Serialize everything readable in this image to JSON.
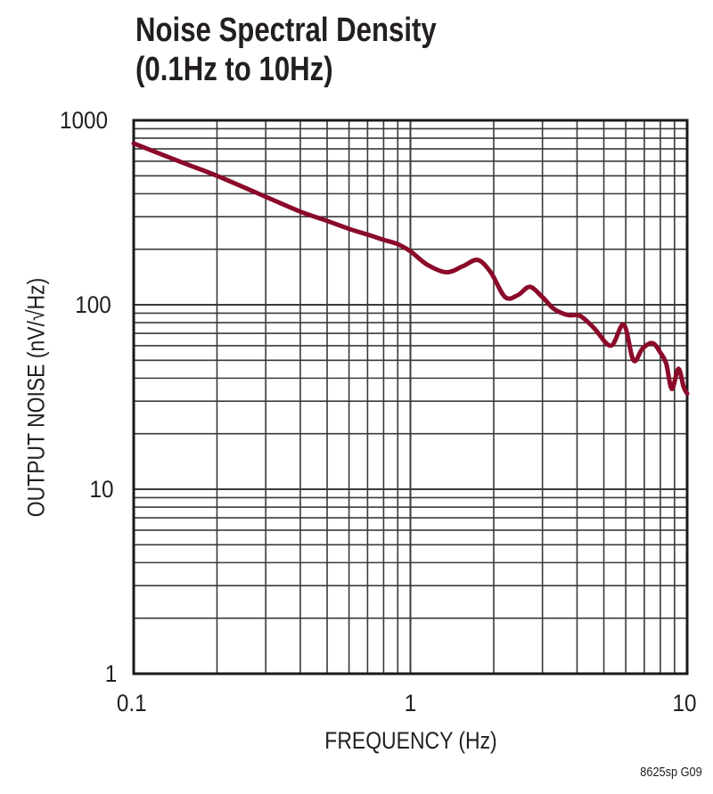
{
  "title": {
    "line1": "Noise Spectral Density",
    "line2": "(0.1Hz to 10Hz)"
  },
  "axes": {
    "x_label": "FREQUENCY (Hz)",
    "y_label": "OUTPUT NOISE (nV/√Hz)",
    "x_ticks": [
      "0.1",
      "1",
      "10"
    ],
    "y_ticks": [
      "1000",
      "100",
      "10",
      "1"
    ]
  },
  "figure_code": "8625sp G09",
  "colors": {
    "curve": "#8b0a2a",
    "grid": "#3a3a3a",
    "frame": "#1a1a1a"
  },
  "chart_data": {
    "type": "line",
    "title": "Noise Spectral Density (0.1Hz to 10Hz)",
    "xlabel": "FREQUENCY (Hz)",
    "ylabel": "OUTPUT NOISE (nV/√Hz)",
    "x_scale": "log",
    "y_scale": "log",
    "xlim": [
      0.1,
      10
    ],
    "ylim": [
      1,
      1000
    ],
    "x_tick_labels": [
      "0.1",
      "1",
      "10"
    ],
    "y_tick_labels": [
      "1",
      "10",
      "100",
      "1000"
    ],
    "grid": true,
    "legend": null,
    "annotations": [
      "8625sp G09"
    ],
    "series": [
      {
        "name": "Output Noise",
        "x": [
          0.1,
          0.15,
          0.2,
          0.3,
          0.4,
          0.5,
          0.6,
          0.7,
          0.8,
          0.9,
          1.0,
          1.15,
          1.35,
          1.55,
          1.75,
          1.95,
          2.2,
          2.45,
          2.7,
          3.0,
          3.3,
          3.7,
          4.1,
          4.6,
          5.3,
          5.9,
          6.4,
          6.9,
          7.5,
          8.0,
          8.4,
          8.8,
          9.3,
          9.7,
          10.0
        ],
        "y": [
          750,
          590,
          500,
          385,
          320,
          285,
          258,
          240,
          225,
          213,
          195,
          165,
          150,
          162,
          175,
          150,
          110,
          113,
          125,
          110,
          95,
          88,
          87,
          75,
          60,
          78,
          50,
          58,
          62,
          55,
          48,
          35,
          45,
          36,
          33
        ]
      }
    ]
  }
}
